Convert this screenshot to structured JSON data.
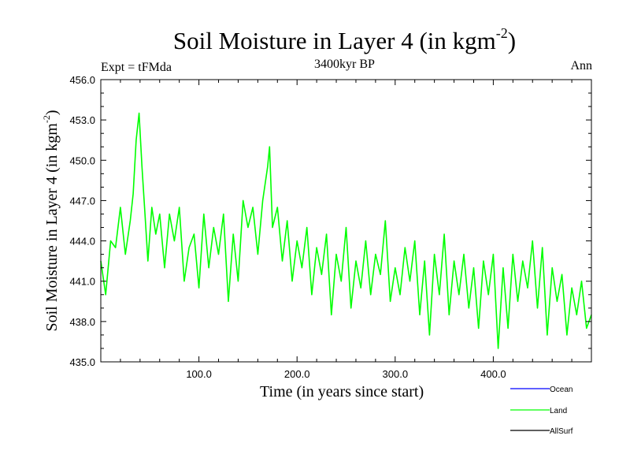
{
  "chart_data": {
    "type": "line",
    "title": "Soil Moisture in Layer 4 (in kgm",
    "title_superscript": "-2",
    "title_close": ")",
    "subtitle": "3400kyr BP",
    "left_annotation": "Expt = tFMda",
    "right_annotation": "Ann",
    "xlabel": "Time (in years since start)",
    "ylabel": "Soil Moisture in Layer 4 (in kgm",
    "ylabel_superscript": "-2",
    "ylabel_close": ")",
    "xlim": [
      0,
      500
    ],
    "ylim": [
      435.0,
      456.0
    ],
    "xticks": [
      100,
      200,
      300,
      400
    ],
    "xtick_labels": [
      "100.0",
      "200.0",
      "300.0",
      "400.0"
    ],
    "yticks": [
      435,
      438,
      441,
      444,
      447,
      450,
      453,
      456
    ],
    "ytick_labels": [
      "435.0",
      "438.0",
      "441.0",
      "444.0",
      "447.0",
      "450.0",
      "453.0",
      "456.0"
    ],
    "legend": [
      {
        "label": "Ocean",
        "color": "#0000ff"
      },
      {
        "label": "Land",
        "color": "#00ff00"
      },
      {
        "label": "AllSurf",
        "color": "#000000"
      }
    ],
    "series": [
      {
        "name": "Land",
        "color": "#00ff00",
        "x": [
          0,
          5,
          10,
          15,
          20,
          25,
          30,
          33,
          36,
          39,
          42,
          45,
          48,
          52,
          56,
          60,
          65,
          70,
          75,
          80,
          85,
          90,
          95,
          100,
          105,
          110,
          115,
          120,
          125,
          130,
          135,
          140,
          145,
          150,
          155,
          160,
          165,
          170,
          172,
          175,
          180,
          185,
          190,
          195,
          200,
          205,
          210,
          215,
          220,
          225,
          230,
          235,
          240,
          245,
          250,
          255,
          260,
          265,
          270,
          275,
          280,
          285,
          290,
          295,
          300,
          305,
          310,
          315,
          320,
          325,
          330,
          335,
          340,
          345,
          350,
          355,
          360,
          365,
          370,
          375,
          380,
          385,
          390,
          395,
          400,
          405,
          410,
          415,
          420,
          425,
          430,
          435,
          440,
          445,
          450,
          455,
          460,
          465,
          470,
          475,
          480,
          485,
          490,
          495,
          500
        ],
        "values": [
          442.5,
          440.0,
          444.0,
          443.5,
          446.5,
          443.0,
          445.5,
          447.5,
          451.5,
          453.5,
          449.5,
          446.0,
          442.5,
          446.5,
          444.5,
          446.0,
          442.0,
          446.0,
          444.0,
          446.5,
          441.0,
          443.5,
          444.5,
          440.5,
          446.0,
          442.0,
          445.0,
          443.0,
          446.0,
          439.5,
          444.5,
          441.0,
          447.0,
          445.0,
          446.5,
          443.0,
          447.0,
          449.5,
          451.0,
          445.0,
          446.5,
          442.5,
          445.5,
          441.0,
          444.0,
          442.0,
          445.0,
          440.0,
          443.5,
          441.5,
          444.5,
          438.5,
          443.0,
          441.0,
          445.0,
          439.0,
          442.5,
          440.5,
          444.0,
          440.0,
          443.0,
          441.5,
          445.5,
          439.5,
          442.0,
          440.0,
          443.5,
          441.0,
          444.0,
          438.5,
          442.5,
          437.0,
          443.0,
          440.0,
          444.5,
          438.5,
          442.5,
          440.0,
          443.0,
          439.0,
          442.0,
          437.5,
          442.5,
          440.0,
          443.0,
          436.0,
          442.0,
          437.5,
          443.0,
          439.5,
          442.5,
          440.5,
          444.0,
          439.0,
          443.5,
          437.0,
          442.0,
          439.5,
          441.5,
          437.0,
          440.5,
          438.5,
          441.0,
          437.5,
          438.5
        ]
      },
      {
        "name": "Ocean",
        "color": "#0000ff",
        "x": [],
        "values": []
      },
      {
        "name": "AllSurf",
        "color": "#000000",
        "x": [],
        "values": []
      }
    ]
  }
}
